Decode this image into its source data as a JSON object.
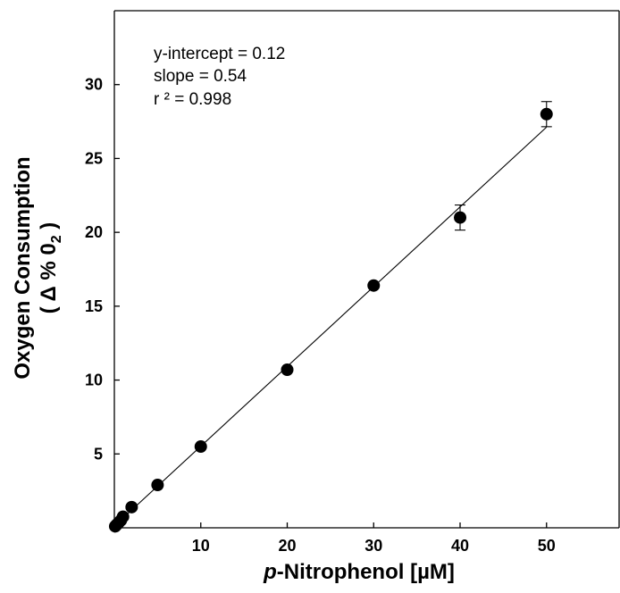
{
  "chart_data": {
    "type": "scatter",
    "xlabel_italic": "p",
    "xlabel_rest": "-Nitrophenol [µM]",
    "ylabel_line1": "Oxygen Consumption",
    "ylabel_line2_pre": "( Δ % 0",
    "ylabel_line2_sub": "2",
    "ylabel_line2_post": " )",
    "xlim": [
      0,
      58.5
    ],
    "ylim": [
      0,
      35
    ],
    "xticks": [
      10,
      20,
      30,
      40,
      50
    ],
    "yticks": [
      5,
      10,
      15,
      20,
      25,
      30
    ],
    "grid": false,
    "annotations": [
      "y-intercept = 0.12",
      "slope = 0.54",
      "r ² = 0.998"
    ],
    "fit_line": {
      "intercept": 0.12,
      "slope": 0.54,
      "x_range": [
        0,
        50
      ]
    },
    "points": [
      {
        "x": 0.1,
        "y": 0.1
      },
      {
        "x": 0.25,
        "y": 0.2
      },
      {
        "x": 0.5,
        "y": 0.35
      },
      {
        "x": 0.75,
        "y": 0.5
      },
      {
        "x": 1,
        "y": 0.75
      },
      {
        "x": 2,
        "y": 1.4
      },
      {
        "x": 5,
        "y": 2.9
      },
      {
        "x": 10,
        "y": 5.5
      },
      {
        "x": 20,
        "y": 10.7
      },
      {
        "x": 30,
        "y": 16.4
      },
      {
        "x": 40,
        "y": 21.0,
        "err": 0.85
      },
      {
        "x": 50,
        "y": 28.0,
        "err": 0.85
      }
    ]
  }
}
